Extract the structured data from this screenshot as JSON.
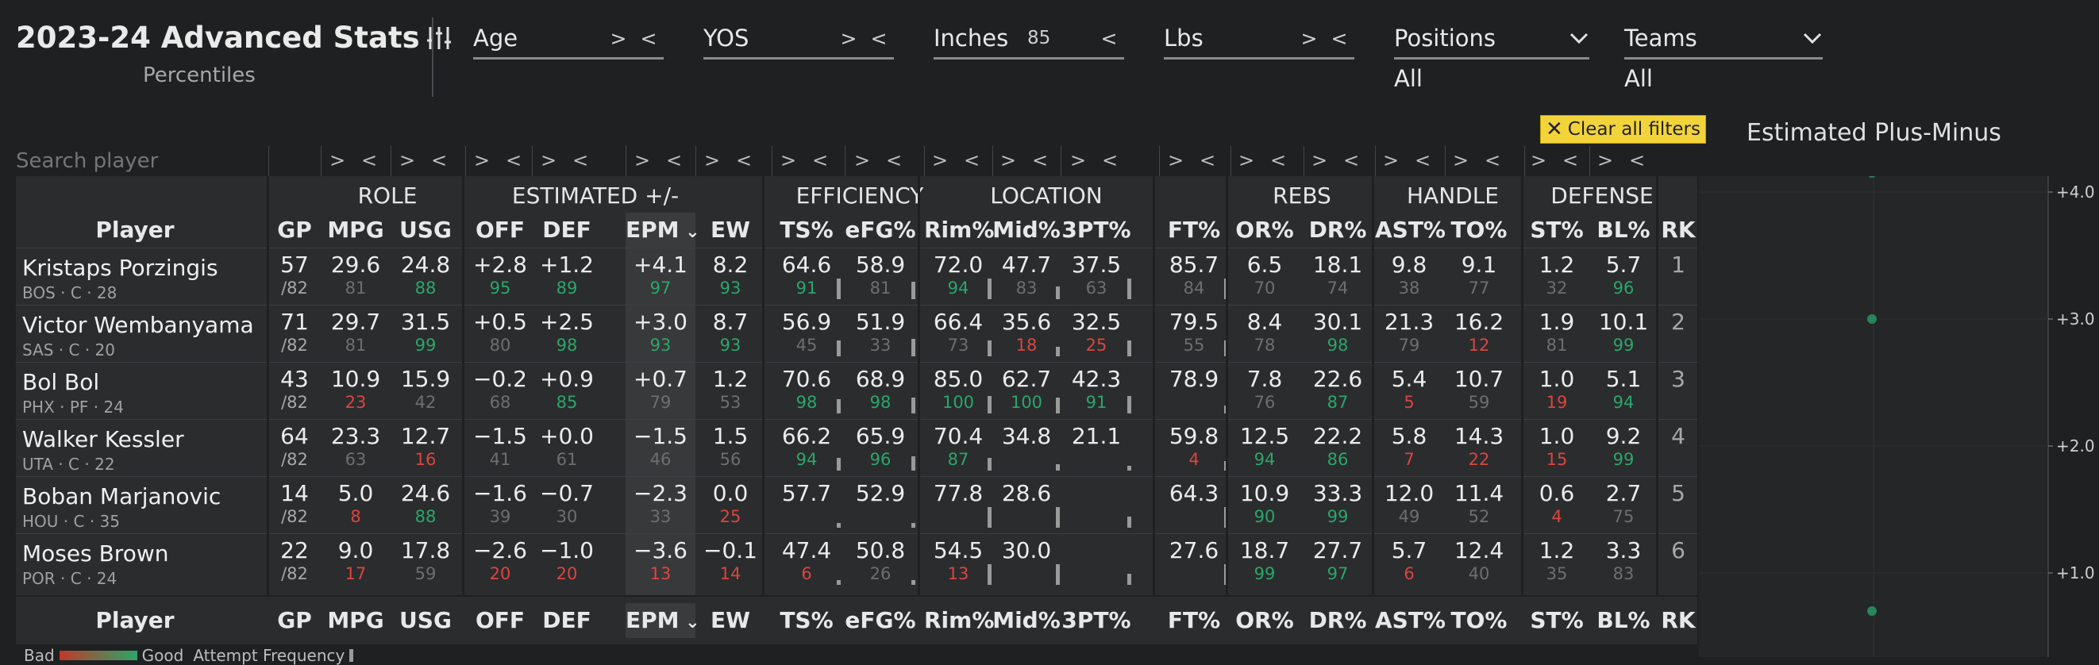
{
  "header": {
    "title": "2023-24 Advanced Stats",
    "subtitle": "Percentiles"
  },
  "filters": [
    {
      "label": "Age",
      "value": "",
      "gt": ">",
      "lt": "<"
    },
    {
      "label": "YOS",
      "value": "",
      "gt": ">",
      "lt": "<"
    },
    {
      "label": "Inches",
      "value": "85",
      "gt": "",
      "lt": "<"
    },
    {
      "label": "Lbs",
      "value": "",
      "gt": ">",
      "lt": "<"
    }
  ],
  "dropdowns": [
    {
      "label": "Positions",
      "selected": "All"
    },
    {
      "label": "Teams",
      "selected": "All"
    }
  ],
  "clear_filters": "Clear all filters",
  "search": {
    "placeholder": "Search player"
  },
  "filter_ops": {
    "gt": ">",
    "lt": "<"
  },
  "groups": {
    "role": "ROLE",
    "estimated": "ESTIMATED +/-",
    "efficiency": "EFFICIENCY",
    "location": "LOCATION",
    "rebs": "REBS",
    "handle": "HANDLE",
    "defense": "DEFENSE"
  },
  "columns": [
    "Player",
    "GP",
    "MPG",
    "USG",
    "OFF",
    "DEF",
    "EPM",
    "EW",
    "TS%",
    "eFG%",
    "Rim%",
    "Mid%",
    "3PT%",
    "FT%",
    "OR%",
    "DR%",
    "AST%",
    "TO%",
    "ST%",
    "BL%",
    "RK"
  ],
  "sort_column": "EPM",
  "rows": [
    {
      "name": "Kristaps Porzingis",
      "meta": "BOS · C · 28",
      "gp": "57",
      "gp_of": "/82",
      "cells": [
        [
          "29.6",
          "81"
        ],
        [
          "24.8",
          "88"
        ],
        [
          "+2.8",
          "95"
        ],
        [
          "+1.2",
          "89"
        ],
        [
          "+4.1",
          "97"
        ],
        [
          "8.2",
          "93"
        ],
        [
          "64.6",
          "91"
        ],
        [
          "58.9",
          "81"
        ],
        [
          "72.0",
          "94"
        ],
        [
          "47.7",
          "83"
        ],
        [
          "37.5",
          "63"
        ],
        [
          "85.7",
          "84"
        ],
        [
          "6.5",
          "70"
        ],
        [
          "18.1",
          "74"
        ],
        [
          "9.8",
          "38"
        ],
        [
          "9.1",
          "77"
        ],
        [
          "1.2",
          "32"
        ],
        [
          "5.7",
          "96"
        ]
      ],
      "rk": "1"
    },
    {
      "name": "Victor Wembanyama",
      "meta": "SAS · C · 20",
      "gp": "71",
      "gp_of": "/82",
      "cells": [
        [
          "29.7",
          "81"
        ],
        [
          "31.5",
          "99"
        ],
        [
          "+0.5",
          "80"
        ],
        [
          "+2.5",
          "98"
        ],
        [
          "+3.0",
          "93"
        ],
        [
          "8.7",
          "93"
        ],
        [
          "56.9",
          "45"
        ],
        [
          "51.9",
          "33"
        ],
        [
          "66.4",
          "73"
        ],
        [
          "35.6",
          "18"
        ],
        [
          "32.5",
          "25"
        ],
        [
          "79.5",
          "55"
        ],
        [
          "8.4",
          "78"
        ],
        [
          "30.1",
          "98"
        ],
        [
          "21.3",
          "79"
        ],
        [
          "16.2",
          "12"
        ],
        [
          "1.9",
          "81"
        ],
        [
          "10.1",
          "99"
        ]
      ],
      "rk": "2"
    },
    {
      "name": "Bol Bol",
      "meta": "PHX · PF · 24",
      "gp": "43",
      "gp_of": "/82",
      "cells": [
        [
          "10.9",
          "23"
        ],
        [
          "15.9",
          "42"
        ],
        [
          "−0.2",
          "68"
        ],
        [
          "+0.9",
          "85"
        ],
        [
          "+0.7",
          "79"
        ],
        [
          "1.2",
          "53"
        ],
        [
          "70.6",
          "98"
        ],
        [
          "68.9",
          "98"
        ],
        [
          "85.0",
          "100"
        ],
        [
          "62.7",
          "100"
        ],
        [
          "42.3",
          "91"
        ],
        [
          "78.9",
          ""
        ],
        [
          "7.8",
          "76"
        ],
        [
          "22.6",
          "87"
        ],
        [
          "5.4",
          "5"
        ],
        [
          "10.7",
          "59"
        ],
        [
          "1.0",
          "19"
        ],
        [
          "5.1",
          "94"
        ]
      ],
      "rk": "3"
    },
    {
      "name": "Walker Kessler",
      "meta": "UTA · C · 22",
      "gp": "64",
      "gp_of": "/82",
      "cells": [
        [
          "23.3",
          "63"
        ],
        [
          "12.7",
          "16"
        ],
        [
          "−1.5",
          "41"
        ],
        [
          "+0.0",
          "61"
        ],
        [
          "−1.5",
          "46"
        ],
        [
          "1.5",
          "56"
        ],
        [
          "66.2",
          "94"
        ],
        [
          "65.9",
          "96"
        ],
        [
          "70.4",
          "87"
        ],
        [
          "34.8",
          ""
        ],
        [
          "21.1",
          ""
        ],
        [
          "59.8",
          "4"
        ],
        [
          "12.5",
          "94"
        ],
        [
          "22.2",
          "86"
        ],
        [
          "5.8",
          "7"
        ],
        [
          "14.3",
          "22"
        ],
        [
          "1.0",
          "15"
        ],
        [
          "9.2",
          "99"
        ]
      ],
      "rk": "4"
    },
    {
      "name": "Boban Marjanovic",
      "meta": "HOU · C · 35",
      "gp": "14",
      "gp_of": "/82",
      "cells": [
        [
          "5.0",
          "8"
        ],
        [
          "24.6",
          "88"
        ],
        [
          "−1.6",
          "39"
        ],
        [
          "−0.7",
          "30"
        ],
        [
          "−2.3",
          "33"
        ],
        [
          "0.0",
          "25"
        ],
        [
          "57.7",
          ""
        ],
        [
          "52.9",
          ""
        ],
        [
          "77.8",
          ""
        ],
        [
          "28.6",
          ""
        ],
        [
          "",
          ""
        ],
        [
          "64.3",
          ""
        ],
        [
          "10.9",
          "90"
        ],
        [
          "33.3",
          "99"
        ],
        [
          "12.0",
          "49"
        ],
        [
          "11.4",
          "52"
        ],
        [
          "0.6",
          "4"
        ],
        [
          "2.7",
          "75"
        ]
      ],
      "rk": "5"
    },
    {
      "name": "Moses Brown",
      "meta": "POR · C · 24",
      "gp": "22",
      "gp_of": "/82",
      "cells": [
        [
          "9.0",
          "17"
        ],
        [
          "17.8",
          "59"
        ],
        [
          "−2.6",
          "20"
        ],
        [
          "−1.0",
          "20"
        ],
        [
          "−3.6",
          "13"
        ],
        [
          "−0.1",
          "14"
        ],
        [
          "47.4",
          "6"
        ],
        [
          "50.8",
          "26"
        ],
        [
          "54.5",
          "13"
        ],
        [
          "30.0",
          ""
        ],
        [
          "",
          ""
        ],
        [
          "27.6",
          ""
        ],
        [
          "18.7",
          "99"
        ],
        [
          "27.7",
          "97"
        ],
        [
          "5.7",
          "6"
        ],
        [
          "12.4",
          "40"
        ],
        [
          "1.2",
          "35"
        ],
        [
          "3.3",
          "83"
        ]
      ],
      "rk": "6"
    }
  ],
  "legend": {
    "bad": "Bad",
    "good": "Good",
    "freq": "Attempt Frequency"
  },
  "pm_chart": {
    "title": "Estimated Plus-Minus",
    "ticks": [
      "+4.0",
      "+3.0",
      "+2.0",
      "+1.0"
    ],
    "values": [
      4.1,
      3.0,
      0.7
    ],
    "accent": "#2aa66a"
  }
}
